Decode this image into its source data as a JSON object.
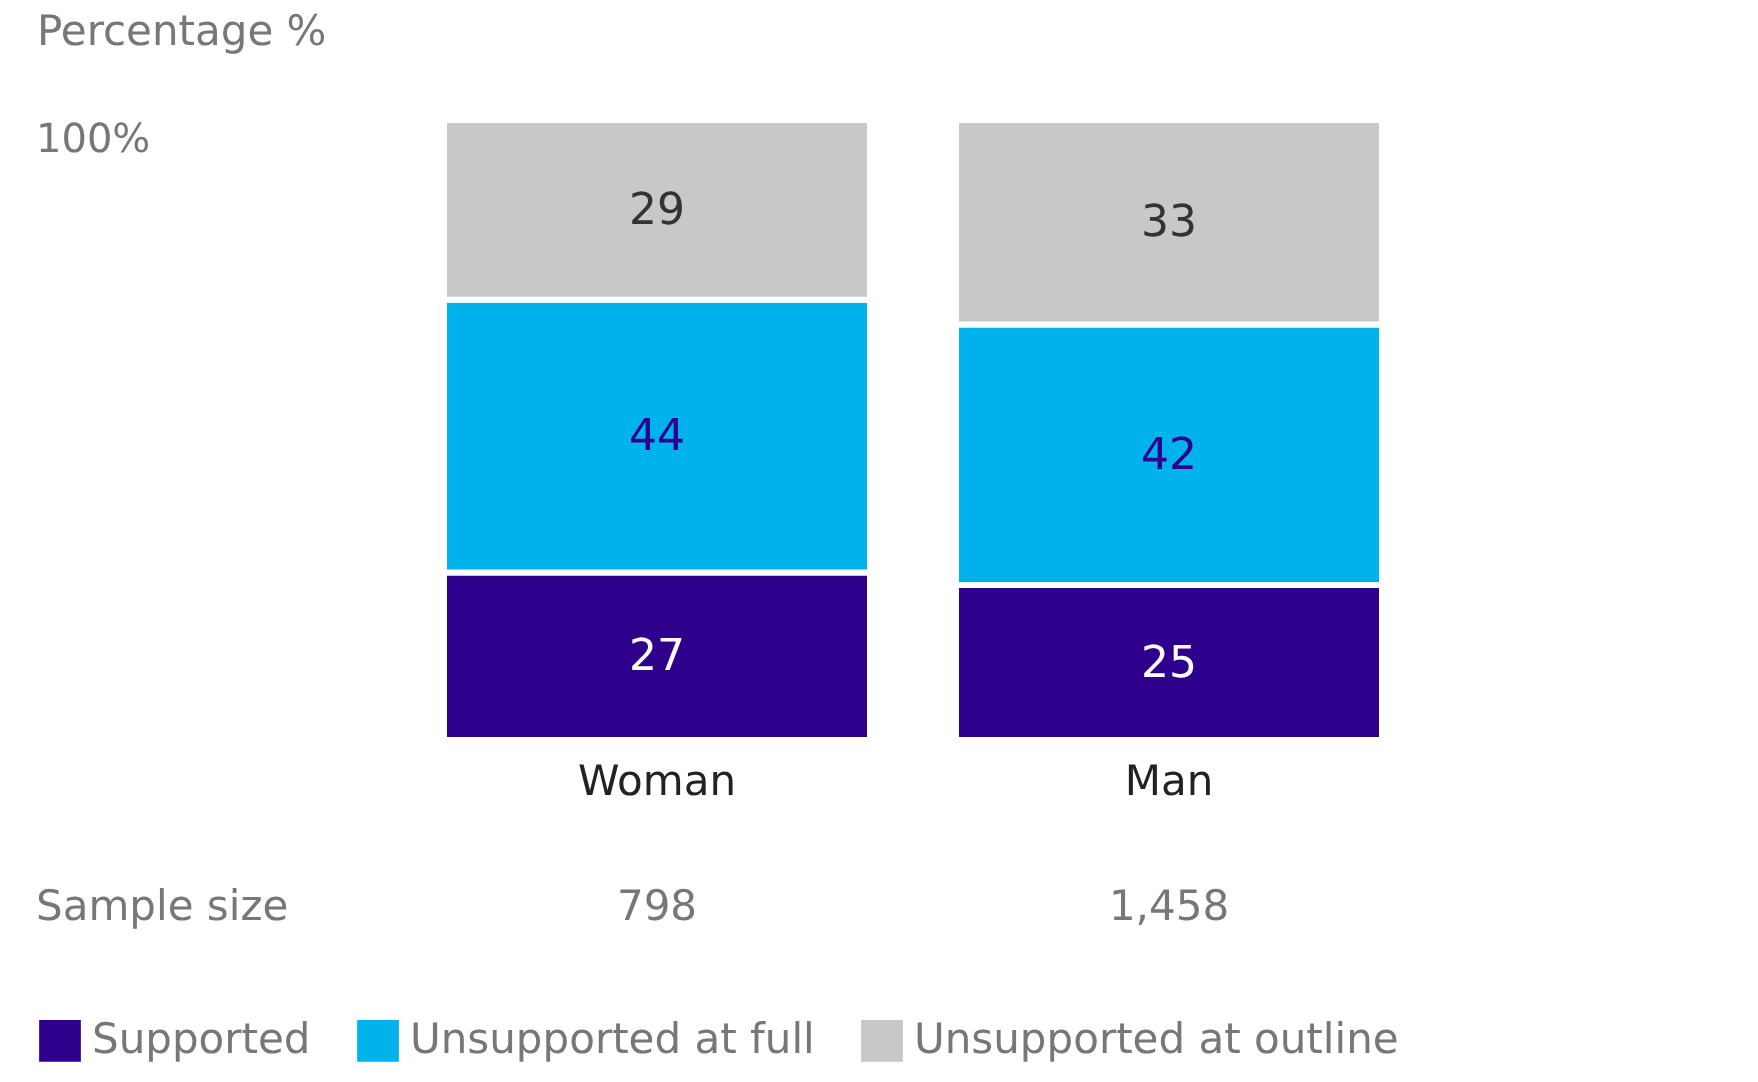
{
  "chart_data": {
    "type": "bar",
    "stacked": true,
    "ylabel": "Percentage %",
    "categories": [
      "Woman",
      "Man"
    ],
    "series": [
      {
        "name": "Supported",
        "color": "#2e008b",
        "values": [
          27,
          25
        ]
      },
      {
        "name": "Unsupported at full",
        "color": "#00b2ec",
        "values": [
          44,
          42
        ]
      },
      {
        "name": "Unsupported at outline",
        "color": "#c8c8c8",
        "values": [
          29,
          33
        ]
      }
    ],
    "data_labels": true,
    "legend": "bottom",
    "annotations": [
      "100%",
      "Sample size",
      "798",
      "1,458"
    ]
  }
}
